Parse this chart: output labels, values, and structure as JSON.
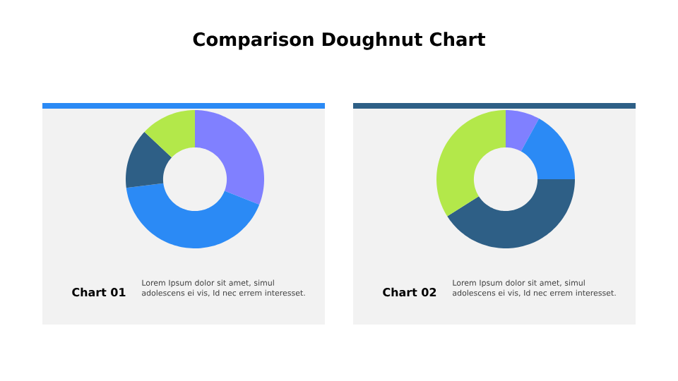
{
  "chart_data": [
    {
      "type": "donut",
      "title": "Comparison Doughnut Chart",
      "subtitle": "Chart 01",
      "annotations": [
        "Lorem Ipsum dolor sit amet, simul adolescens ei vis, Id nec errem interesset."
      ],
      "categories": [
        null,
        null,
        null,
        null
      ],
      "values": [
        31,
        42,
        14,
        13
      ],
      "colors": [
        "#8080ff",
        "#2b8af5",
        "#2e5f86",
        "#b3e84a"
      ]
    },
    {
      "type": "donut",
      "subtitle": "Chart 02",
      "annotations": [
        "Lorem Ipsum dolor sit amet, simul adolescens ei vis, Id nec errem interesset."
      ],
      "categories": [
        null,
        null,
        null,
        null
      ],
      "values": [
        8,
        17,
        41,
        34
      ],
      "colors": [
        "#8080ff",
        "#2b8af5",
        "#2e5f86",
        "#b3e84a"
      ]
    }
  ]
}
